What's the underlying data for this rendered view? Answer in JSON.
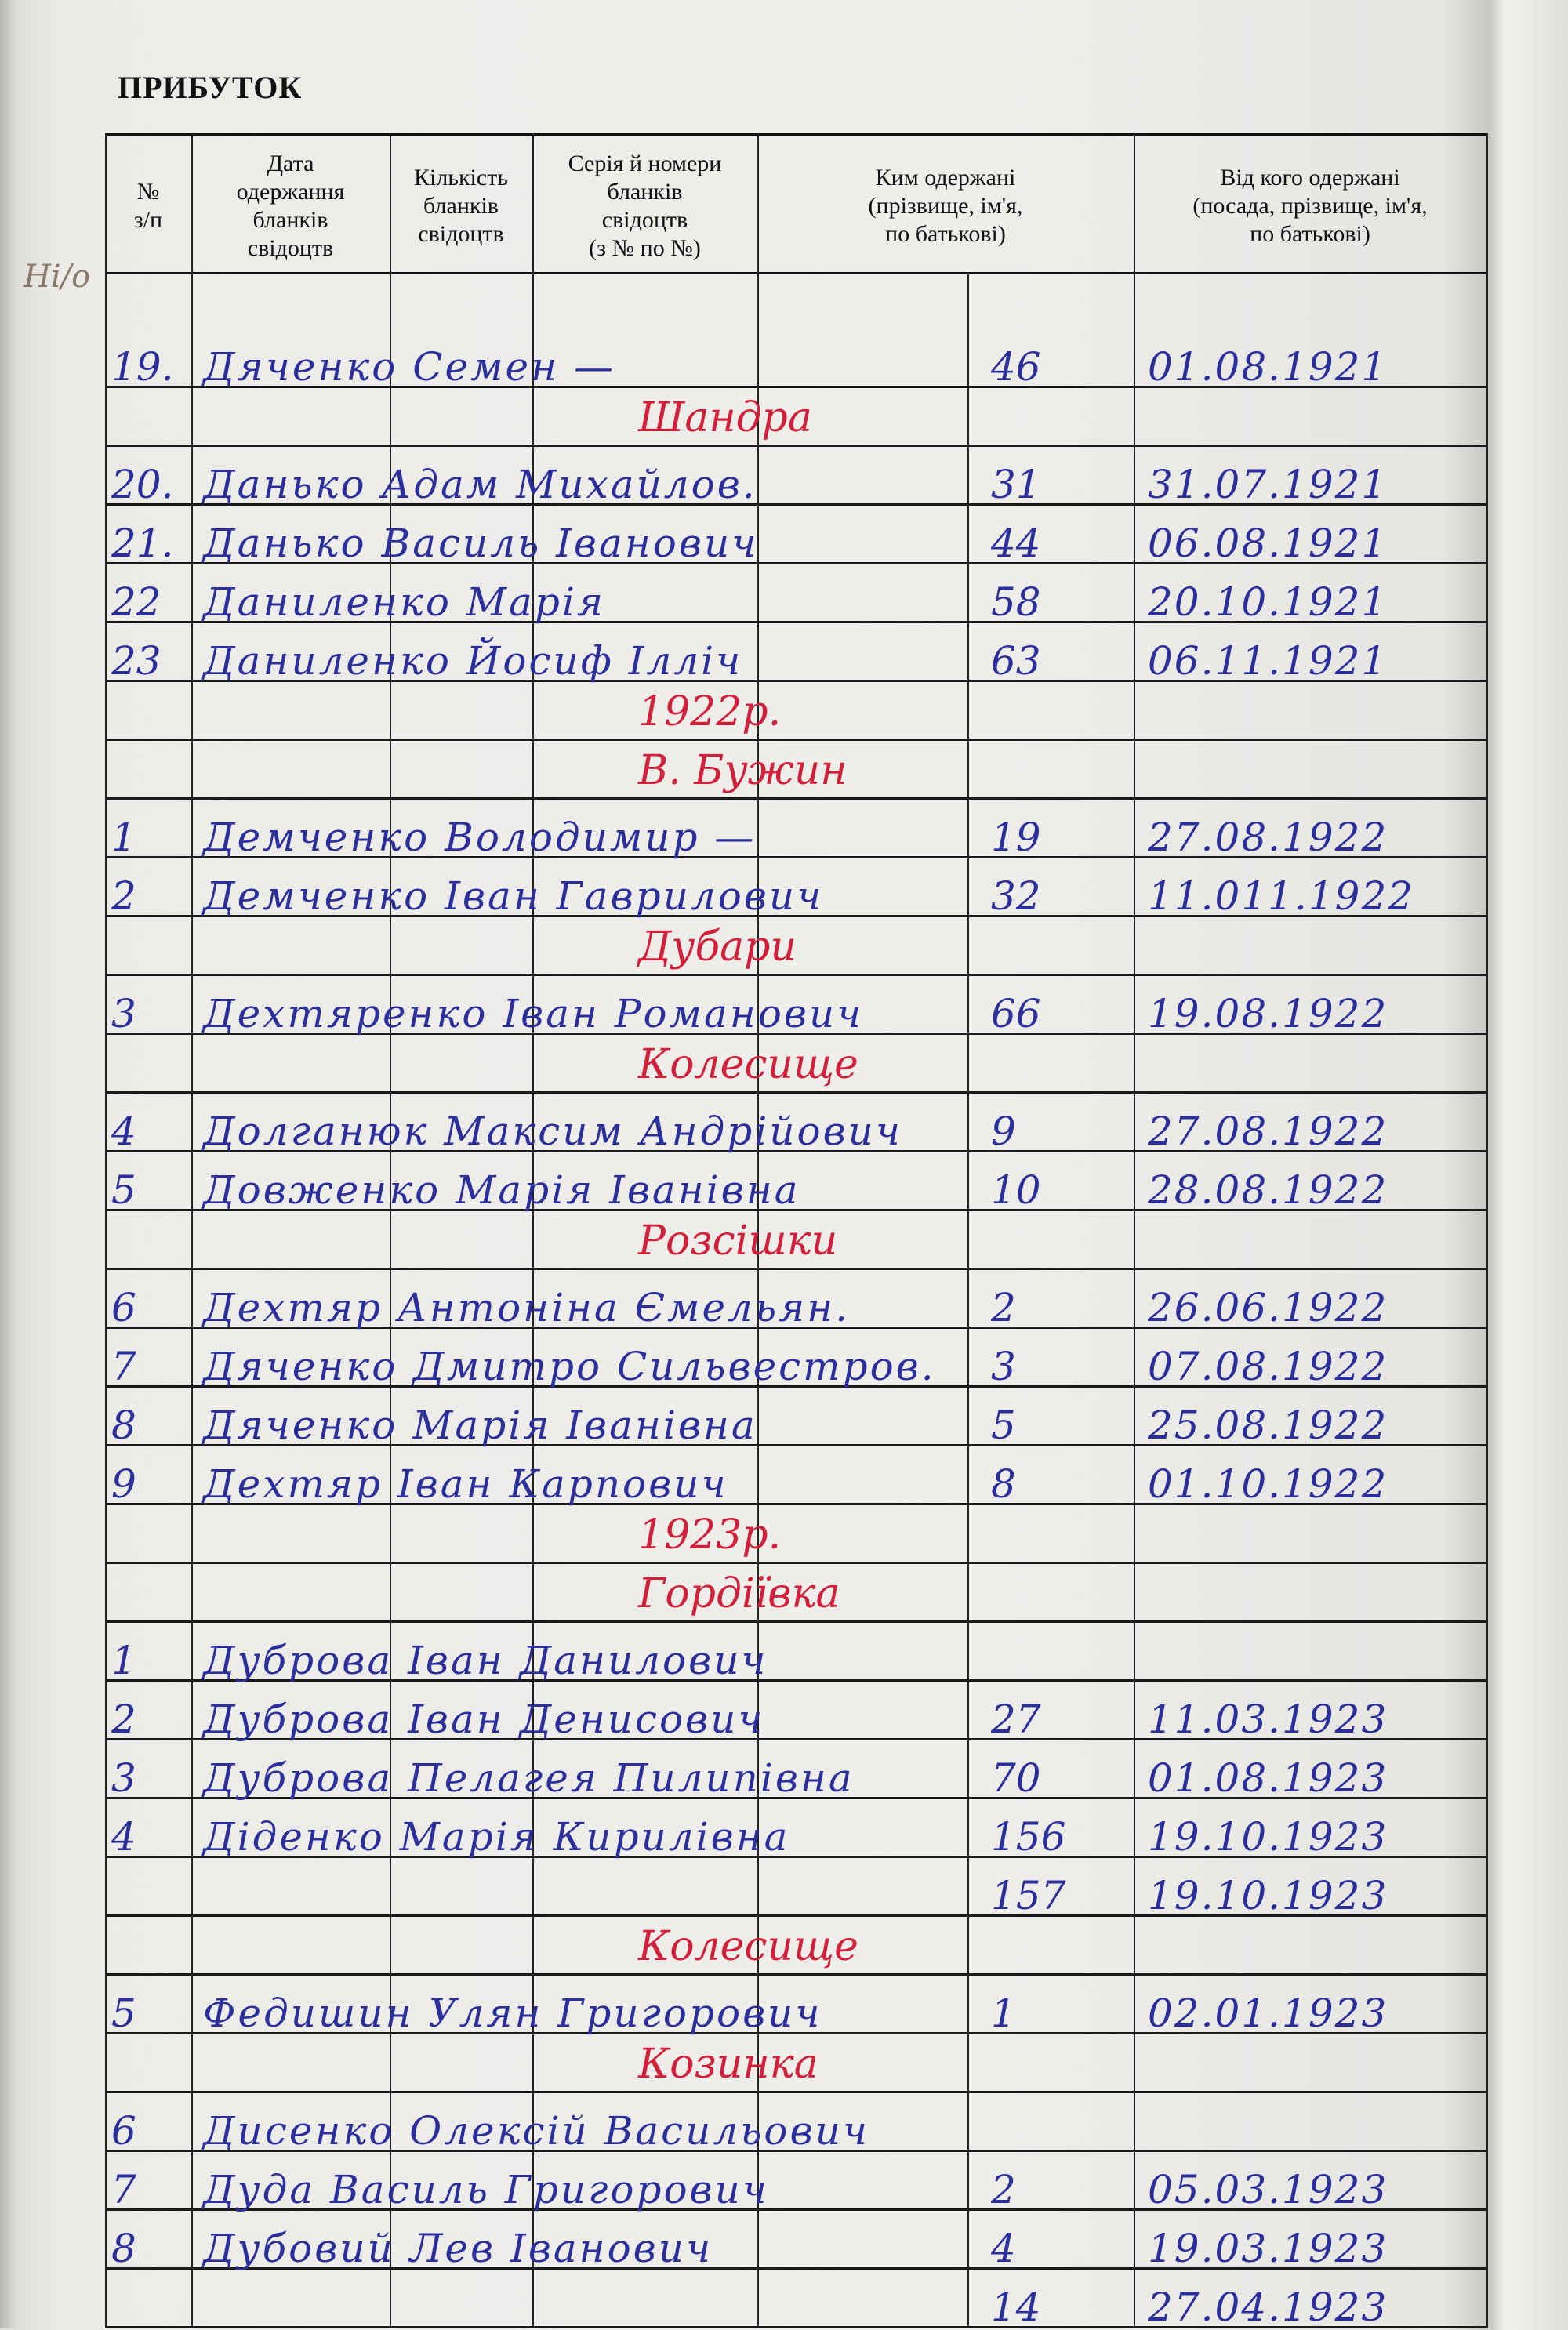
{
  "title": "ПРИБУТОК",
  "headers": [
    "№\nз/п",
    "Дата\nодержання\nбланків\nсвідоцтв",
    "Кількість\nбланків\nсвідоцтв",
    "Серія й номери\nбланків\nсвідоцтв\n(з № по №)",
    "Ким одержані\n(прізвище, ім'я,\nпо батькові)",
    "Від кого одержані\n(посада, прізвище, ім'я,\nпо батькові)"
  ],
  "pencil_note": "Ні/о",
  "colors": {
    "ink_blue": "#2a2f9c",
    "ink_red": "#d3203a"
  },
  "entries": [
    {
      "num": "19.",
      "name": "Дяченко Семен —",
      "qty": "46",
      "date": "01.08.1921"
    },
    {
      "place": "Шандра"
    },
    {
      "num": "20.",
      "name": "Данько Адам Михайлов.",
      "qty": "31",
      "date": "31.07.1921"
    },
    {
      "num": "21.",
      "name": "Данько Василь Іванович",
      "qty": "44",
      "date": "06.08.1921"
    },
    {
      "num": "22",
      "name": "Даниленко Марія",
      "qty": "58",
      "date": "20.10.1921"
    },
    {
      "num": "23",
      "name": "Даниленко Йосиф Ілліч",
      "qty": "63",
      "date": "06.11.1921"
    },
    {
      "place": "1922р."
    },
    {
      "place": "В. Бужин"
    },
    {
      "num": "1",
      "name": "Демченко Володимир —",
      "qty": "19",
      "date": "27.08.1922"
    },
    {
      "num": "2",
      "name": "Демченко Іван Гаврилович",
      "qty": "32",
      "date": "11.011.1922"
    },
    {
      "place": "Дубари"
    },
    {
      "num": "3",
      "name": "Дехтяренко Іван Романович",
      "qty": "66",
      "date": "19.08.1922"
    },
    {
      "place": "Колесище"
    },
    {
      "num": "4",
      "name": "Долганюк Максим Андрійович",
      "qty": "9",
      "date": "27.08.1922"
    },
    {
      "num": "5",
      "name": "Довженко Марія Іванівна",
      "qty": "10",
      "date": "28.08.1922"
    },
    {
      "place": "Розсішки"
    },
    {
      "num": "6",
      "name": "Дехтяр Антоніна Ємельян.",
      "qty": "2",
      "date": "26.06.1922"
    },
    {
      "num": "7",
      "name": "Дяченко Дмитро Сильвестров.",
      "qty": "3",
      "date": "07.08.1922"
    },
    {
      "num": "8",
      "name": "Дяченко Марія Іванівна",
      "qty": "5",
      "date": "25.08.1922"
    },
    {
      "num": "9",
      "name": "Дехтяр Іван Карпович",
      "qty": "8",
      "date": "01.10.1922"
    },
    {
      "place": "1923р."
    },
    {
      "place": "Гордіївка"
    },
    {
      "num": "1",
      "name": "Дуброва Іван Данилович",
      "qty": "",
      "date": ""
    },
    {
      "num": "2",
      "name": "Дуброва Іван Денисович",
      "qty": "27",
      "date": "11.03.1923"
    },
    {
      "num": "3",
      "name": "Дуброва Пелагея Пилипівна",
      "qty": "70",
      "date": "01.08.1923"
    },
    {
      "num": "4",
      "name": "Діденко Марія Кирилівна",
      "qty": "156",
      "date": "19.10.1923"
    },
    {
      "num": "",
      "name": "",
      "qty": "157",
      "date": "19.10.1923"
    },
    {
      "place": "Колесище"
    },
    {
      "num": "5",
      "name": "Федишин Улян Григорович",
      "qty": "1",
      "date": "02.01.1923"
    },
    {
      "place": "Козинка"
    },
    {
      "num": "6",
      "name": "Дисенко Олексій Васильович",
      "qty": "",
      "date": ""
    },
    {
      "num": "7",
      "name": "Дуда Василь Григорович",
      "qty": "2",
      "date": "05.03.1923"
    },
    {
      "num": "8",
      "name": "Дубовий Лев Іванович",
      "qty": "4",
      "date": "19.03.1923"
    },
    {
      "num": "",
      "name": "",
      "qty": "14",
      "date": "27.04.1923"
    }
  ]
}
